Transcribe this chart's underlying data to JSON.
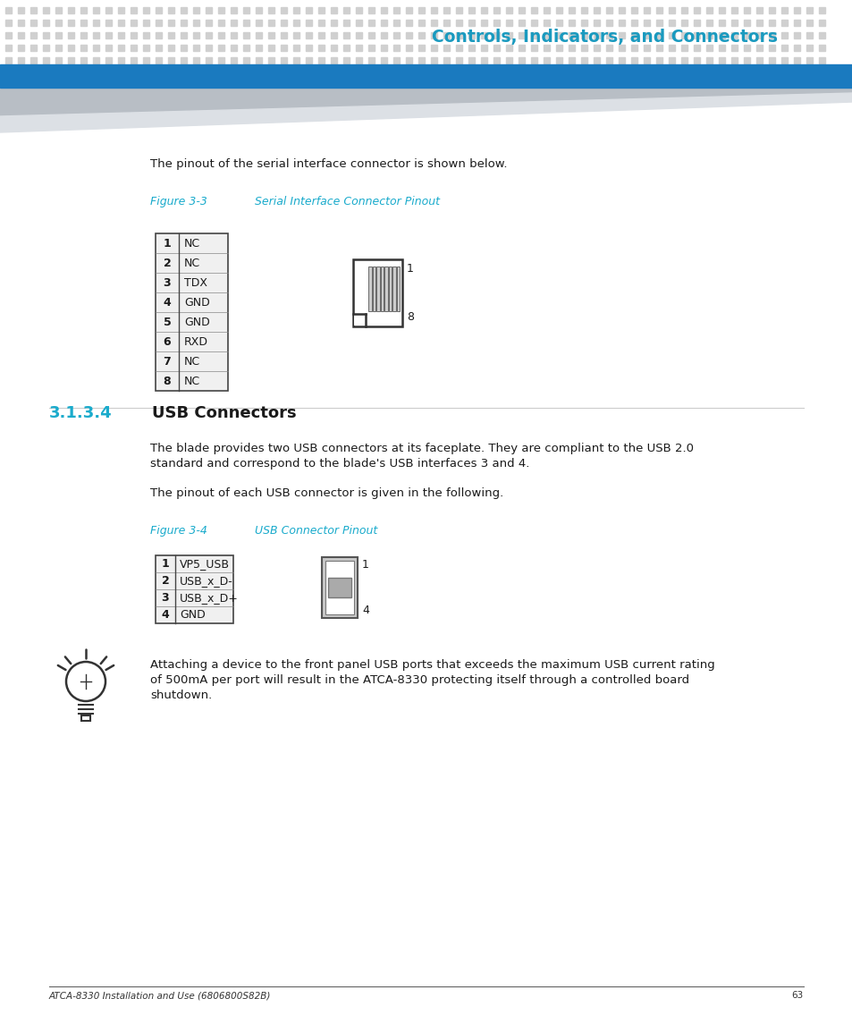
{
  "title": "Controls, Indicators, and Connectors",
  "title_color": "#1a9abf",
  "bg_color": "#ffffff",
  "header_bar_color": "#1a7abf",
  "text_color": "#1a1a1a",
  "cyan_text_color": "#1aabcc",
  "dot_color": "#d0d0d0",
  "intro_text": "The pinout of the serial interface connector is shown below.",
  "fig33_label": "Figure 3-3",
  "fig33_title": "Serial Interface Connector Pinout",
  "serial_pins": [
    [
      "1",
      "NC"
    ],
    [
      "2",
      "NC"
    ],
    [
      "3",
      "TDX"
    ],
    [
      "4",
      "GND"
    ],
    [
      "5",
      "GND"
    ],
    [
      "6",
      "RXD"
    ],
    [
      "7",
      "NC"
    ],
    [
      "8",
      "NC"
    ]
  ],
  "section_number": "3.1.3.4",
  "section_title": "USB Connectors",
  "usb_para1_line1": "The blade provides two USB connectors at its faceplate. They are compliant to the USB 2.0",
  "usb_para1_line2": "standard and correspond to the blade's USB interfaces 3 and 4.",
  "usb_para2": "The pinout of each USB connector is given in the following.",
  "fig34_label": "Figure 3-4",
  "fig34_title": "USB Connector Pinout",
  "usb_pins": [
    [
      "1",
      "VP5_USB"
    ],
    [
      "2",
      "USB_x_D-"
    ],
    [
      "3",
      "USB_x_D+"
    ],
    [
      "4",
      "GND"
    ]
  ],
  "note_line1": "Attaching a device to the front panel USB ports that exceeds the maximum USB current rating",
  "note_line2": "of 500mA per port will result in the ATCA-8330 protecting itself through a controlled board",
  "note_line3": "shutdown.",
  "footer_text": "ATCA-8330 Installation and Use (6806800S82B)",
  "footer_page": "63"
}
